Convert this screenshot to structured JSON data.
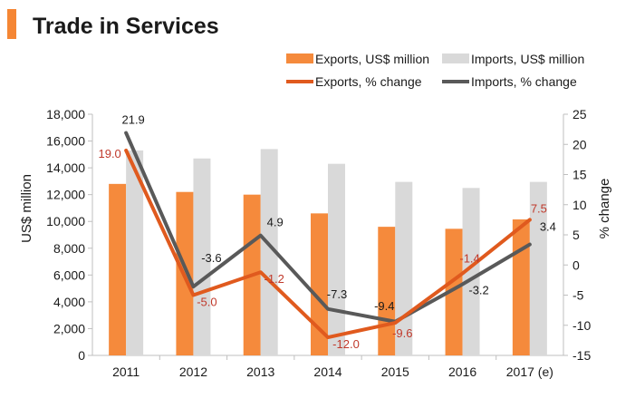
{
  "title": "Trade in Services",
  "colors": {
    "accent": "#F58634",
    "exports_bar": "#F58A3C",
    "imports_bar": "#D9D9D9",
    "exports_line": "#E05A1E",
    "imports_line": "#595959",
    "exports_label": "#C0392B",
    "imports_label": "#1A1A1A"
  },
  "chart_data": {
    "type": "bar+line",
    "title": "Trade in Services",
    "categories": [
      "2011",
      "2012",
      "2013",
      "2014",
      "2015",
      "2016",
      "2017 (e)"
    ],
    "ylabel": "US$ million",
    "y2label": "% change",
    "ylim": [
      0,
      18000
    ],
    "y_ticks": [
      "0",
      "2,000",
      "4,000",
      "6,000",
      "8,000",
      "10,000",
      "12,000",
      "14,000",
      "16,000",
      "18,000"
    ],
    "y2lim": [
      -15,
      25
    ],
    "y2_ticks": [
      "-15",
      "-10",
      "-5",
      "0",
      "5",
      "10",
      "15",
      "20",
      "25"
    ],
    "legend": {
      "exports_bar": "Exports, US$ million",
      "imports_bar": "Imports, US$ million",
      "exports_line": "Exports, % change",
      "imports_line": "Imports, % change"
    },
    "bars": [
      {
        "name": "Exports, US$ million",
        "values": [
          12800,
          12200,
          12000,
          10600,
          9600,
          9450,
          10150
        ]
      },
      {
        "name": "Imports, US$ million",
        "values": [
          15300,
          14700,
          15400,
          14300,
          12950,
          12500,
          12950
        ]
      }
    ],
    "lines": [
      {
        "name": "Exports, % change",
        "axis": "right",
        "values": [
          19.0,
          -5.0,
          -1.2,
          -12.0,
          -9.6,
          -1.4,
          7.5
        ],
        "labels": [
          "19.0",
          "-5.0",
          "-1.2",
          "-12.0",
          "-9.6",
          "-1.4",
          "7.5"
        ]
      },
      {
        "name": "Imports, % change",
        "axis": "right",
        "values": [
          21.9,
          -3.6,
          4.9,
          -7.3,
          -9.4,
          -3.2,
          3.4
        ],
        "labels": [
          "21.9",
          "-3.6",
          "4.9",
          "-7.3",
          "-9.4",
          "-3.2",
          "3.4"
        ]
      }
    ]
  }
}
